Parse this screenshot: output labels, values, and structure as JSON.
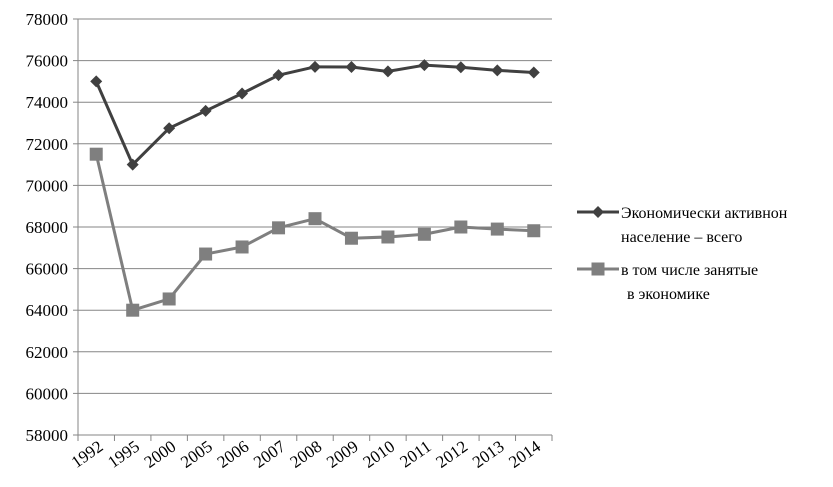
{
  "chart_data": {
    "type": "line",
    "categories": [
      "1992",
      "1995",
      "2000",
      "2005",
      "2006",
      "2007",
      "2008",
      "2009",
      "2010",
      "2011",
      "2012",
      "2013",
      "2014"
    ],
    "series": [
      {
        "name_lines": [
          "Экономически активнон",
          "население – всего"
        ],
        "marker": "diamond",
        "color": "#404040",
        "values": [
          75000,
          71000,
          72750,
          73580,
          74420,
          75300,
          75700,
          75690,
          75480,
          75780,
          75680,
          75530,
          75430
        ]
      },
      {
        "name_lines": [
          "в том числе занятые",
          "в экономике"
        ],
        "marker": "square",
        "color": "#7f7f7f",
        "values": [
          71500,
          64000,
          64540,
          66700,
          67040,
          67960,
          68400,
          67460,
          67520,
          67650,
          68000,
          67900,
          67820
        ]
      }
    ],
    "ylim": [
      58000,
      78000
    ],
    "yticks": [
      58000,
      60000,
      62000,
      64000,
      66000,
      68000,
      70000,
      72000,
      74000,
      76000,
      78000
    ],
    "grid": "horizontal",
    "legend_position": "right"
  }
}
